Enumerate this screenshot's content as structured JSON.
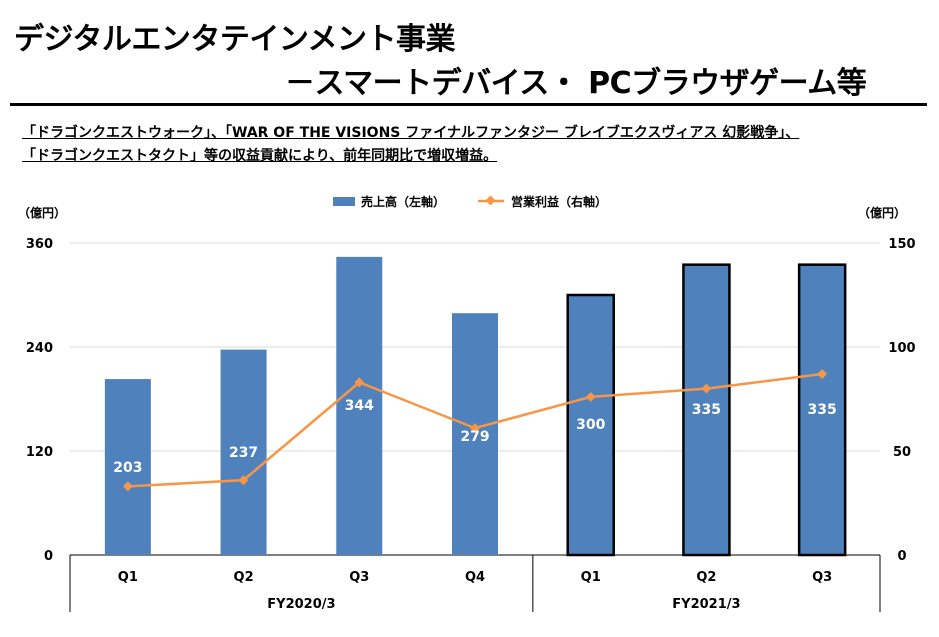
{
  "header": {
    "title_line1": "デジタルエンタテインメント事業",
    "title_line2": "－スマートデバイス・ PCブラウザゲーム等",
    "subtitle_line1": "「ドラゴンクエストウォーク」、「WAR OF THE VISIONS ファイナルファンタジー ブレイブエクスヴィアス 幻影戦争」、",
    "subtitle_line2": "「ドラゴンクエストタクト」等の収益貢献により、前年同期比で増収増益。"
  },
  "chart_data": {
    "type": "bar",
    "categories": [
      "Q1",
      "Q2",
      "Q3",
      "Q4",
      "Q1",
      "Q2",
      "Q3"
    ],
    "groups": [
      {
        "label": "FY2020/3",
        "count": 4
      },
      {
        "label": "FY2021/3",
        "count": 3
      }
    ],
    "series": [
      {
        "name": "売上高（左軸）",
        "type": "bar",
        "axis": "left",
        "color": "#4f81bd",
        "values": [
          203,
          237,
          344,
          279,
          300,
          335,
          335
        ],
        "labels": [
          "203",
          "237",
          "344",
          "279",
          "300",
          "335",
          "335"
        ],
        "outlined": [
          false,
          false,
          false,
          false,
          true,
          true,
          true
        ]
      },
      {
        "name": "営業利益（右軸）",
        "type": "line",
        "axis": "right",
        "color": "#f79646",
        "values": [
          33,
          36,
          83,
          61,
          76,
          80,
          87
        ]
      }
    ],
    "left_axis": {
      "unit": "（億円）",
      "ylim": [
        0,
        360
      ],
      "ticks": [
        "0",
        "120",
        "240",
        "360"
      ]
    },
    "right_axis": {
      "unit": "（億円）",
      "ylim": [
        0,
        150
      ],
      "ticks": [
        "0",
        "50",
        "100",
        "150"
      ]
    },
    "grid": true,
    "legend_position": "top-center"
  }
}
